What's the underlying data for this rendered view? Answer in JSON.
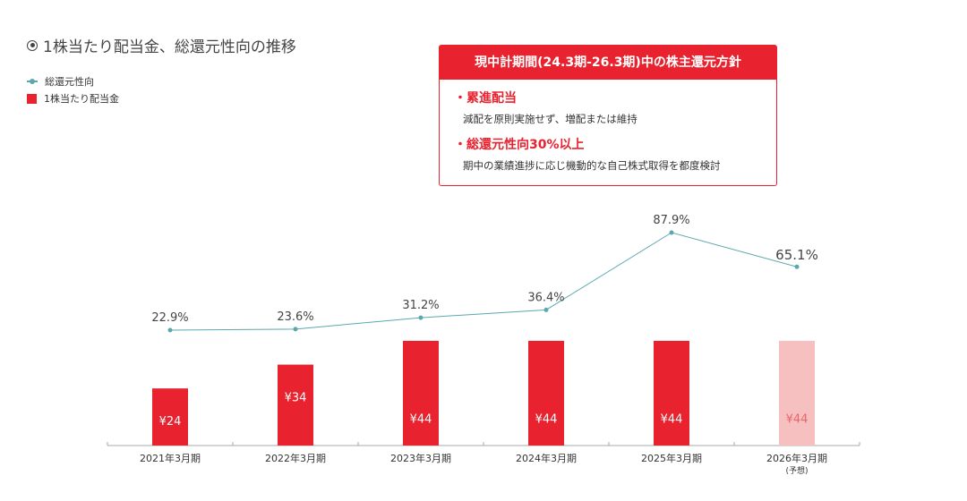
{
  "title": "1株当たり配当金、総還元性向の推移",
  "legend": {
    "line": "総還元性向",
    "bar": "1株当たり配当金"
  },
  "policy": {
    "header": "現中計期間(24.3期-26.3期)中の株主還元方針",
    "items": [
      {
        "title": "・累進配当",
        "desc": "減配を原則実施せず、増配または維持"
      },
      {
        "title": "・総還元性向30%以上",
        "desc": "期中の業績進捗に応じ機動的な自己株式取得を都度検討"
      }
    ]
  },
  "colors": {
    "bar": "#e8222e",
    "bar_forecast": "#f7c0c0",
    "line": "#5aa8ae"
  },
  "chart_data": {
    "type": "bar+line",
    "categories": [
      "2021年3月期",
      "2022年3月期",
      "2023年3月期",
      "2024年3月期",
      "2025年3月期",
      "2026年3月期"
    ],
    "category_notes": [
      "",
      "",
      "",
      "",
      "",
      "(予想)"
    ],
    "series": [
      {
        "name": "1株当たり配当金",
        "type": "bar",
        "values": [
          24,
          34,
          44,
          44,
          44,
          44
        ],
        "labels": [
          "¥24",
          "¥34",
          "¥44",
          "¥44",
          "¥44",
          "¥44"
        ],
        "forecast": [
          false,
          false,
          false,
          false,
          false,
          true
        ]
      },
      {
        "name": "総還元性向",
        "type": "line",
        "values": [
          22.9,
          23.6,
          31.2,
          36.4,
          87.9,
          65.1
        ],
        "labels": [
          "22.9%",
          "23.6%",
          "31.2%",
          "36.4%",
          "87.9%",
          "65.1%"
        ]
      }
    ]
  }
}
